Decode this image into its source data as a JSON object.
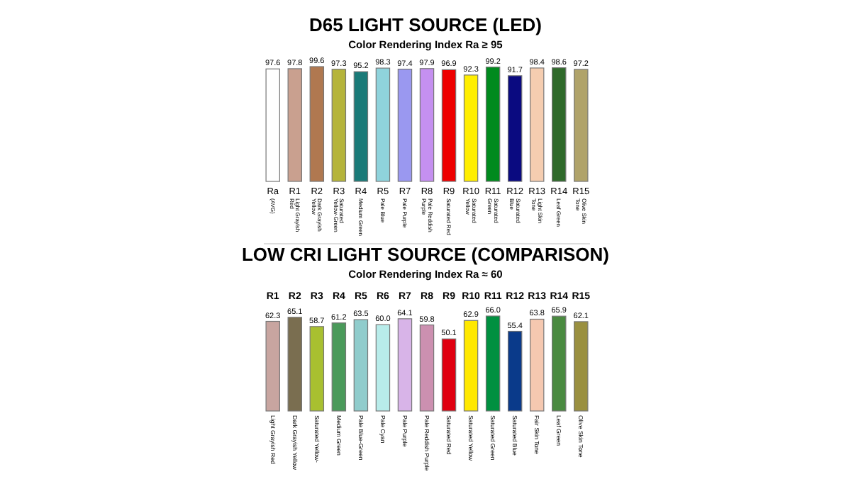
{
  "chart_data": [
    {
      "type": "bar",
      "title": "D65 LIGHT SOURCE (LED)",
      "subtitle": "Color Rendering Index Ra ≥ 95",
      "categories": [
        "Ra\n(AVG)",
        "R1\nLight Grayish Red",
        "R2\nDark Grayish Yellow",
        "R3\nSaturated Yellow-Green",
        "R4\nMedium Green",
        "R5\nPale Blue",
        "R7\nPale Purple",
        "R8\nPale Reddish Purple",
        "R9\nSaturated Red",
        "R10\nSaturated Yellow",
        "R11\nSaturated Green",
        "R12\nSaturated Blue",
        "R13\nLight Skin Tone",
        "R14\nLeaf Green",
        "R15\nOlive Skin Tone"
      ],
      "values": [
        97.6,
        97.8,
        99.6,
        97.3,
        95.2,
        98.3,
        97.4,
        97.9,
        96.9,
        92.3,
        99.2,
        91.7,
        98.4,
        98.6,
        97.2
      ],
      "colors": [
        "#ffffff",
        "#c9a08f",
        "#b07850",
        "#b5b43a",
        "#1a7a78",
        "#8fd3dc",
        "#9a98f0",
        "#c590f0",
        "#ee0000",
        "#ffee00",
        "#008a1e",
        "#0a0a80",
        "#f5cdb0",
        "#2f6a2a",
        "#b0a36a"
      ],
      "value_labels": [
        "97.6",
        "97.8",
        "99.6",
        "97.3",
        "95.2",
        "98.3",
        "97.4",
        "97.9",
        "96.9",
        "92.3",
        "99.2",
        "91.7",
        "98.4",
        "98.6",
        "97.2"
      ],
      "tick_labels": "x"
    },
    {
      "type": "bar",
      "title": "LOW CRI LIGHT SOURCE (COMPARISON)",
      "subtitle": "Color Rendering Index Ra ≈ 60",
      "categories": [
        "R1\nLight Grayish Red",
        "R2\nDark Grayish Yellow",
        "R3\nSaturated Yellow-",
        "R4\nMedium Green",
        "R5\nPale Blue-Green",
        "R6\nPale Cyan",
        "R7\nPale Purple",
        "R8\nPale Reddish Purple",
        "R9\nSaturated Red",
        "R10\nSaturated Yellow",
        "R11\nSaturated Green",
        "R12\nSaturated Blue",
        "R13\nFair Skin Tone",
        "R14\nLeaf Green",
        "R15\nOlive Skin Tone"
      ],
      "values": [
        62.3,
        65.1,
        58.7,
        61.2,
        63.5,
        60.0,
        64.1,
        59.8,
        50.1,
        62.9,
        66.0,
        55.4,
        63.8,
        65.9,
        62.1
      ],
      "colors": [
        "#c8a5a0",
        "#7a6e50",
        "#a8c030",
        "#4a9a5a",
        "#90cccc",
        "#b8ecea",
        "#d8b4e8",
        "#cc90b0",
        "#e00010",
        "#ffe800",
        "#009040",
        "#0a3a8a",
        "#f5c8b0",
        "#4a8a40",
        "#9a9040"
      ],
      "value_labels": [
        "62.3",
        "65.1",
        "58.7",
        "61.2",
        "63.5",
        "60.0",
        "64.1",
        "59.8",
        "50.1",
        "62.9",
        "66.0",
        "55.4",
        "63.8",
        "65.9",
        "62.1"
      ],
      "tick_labels": "x"
    }
  ]
}
